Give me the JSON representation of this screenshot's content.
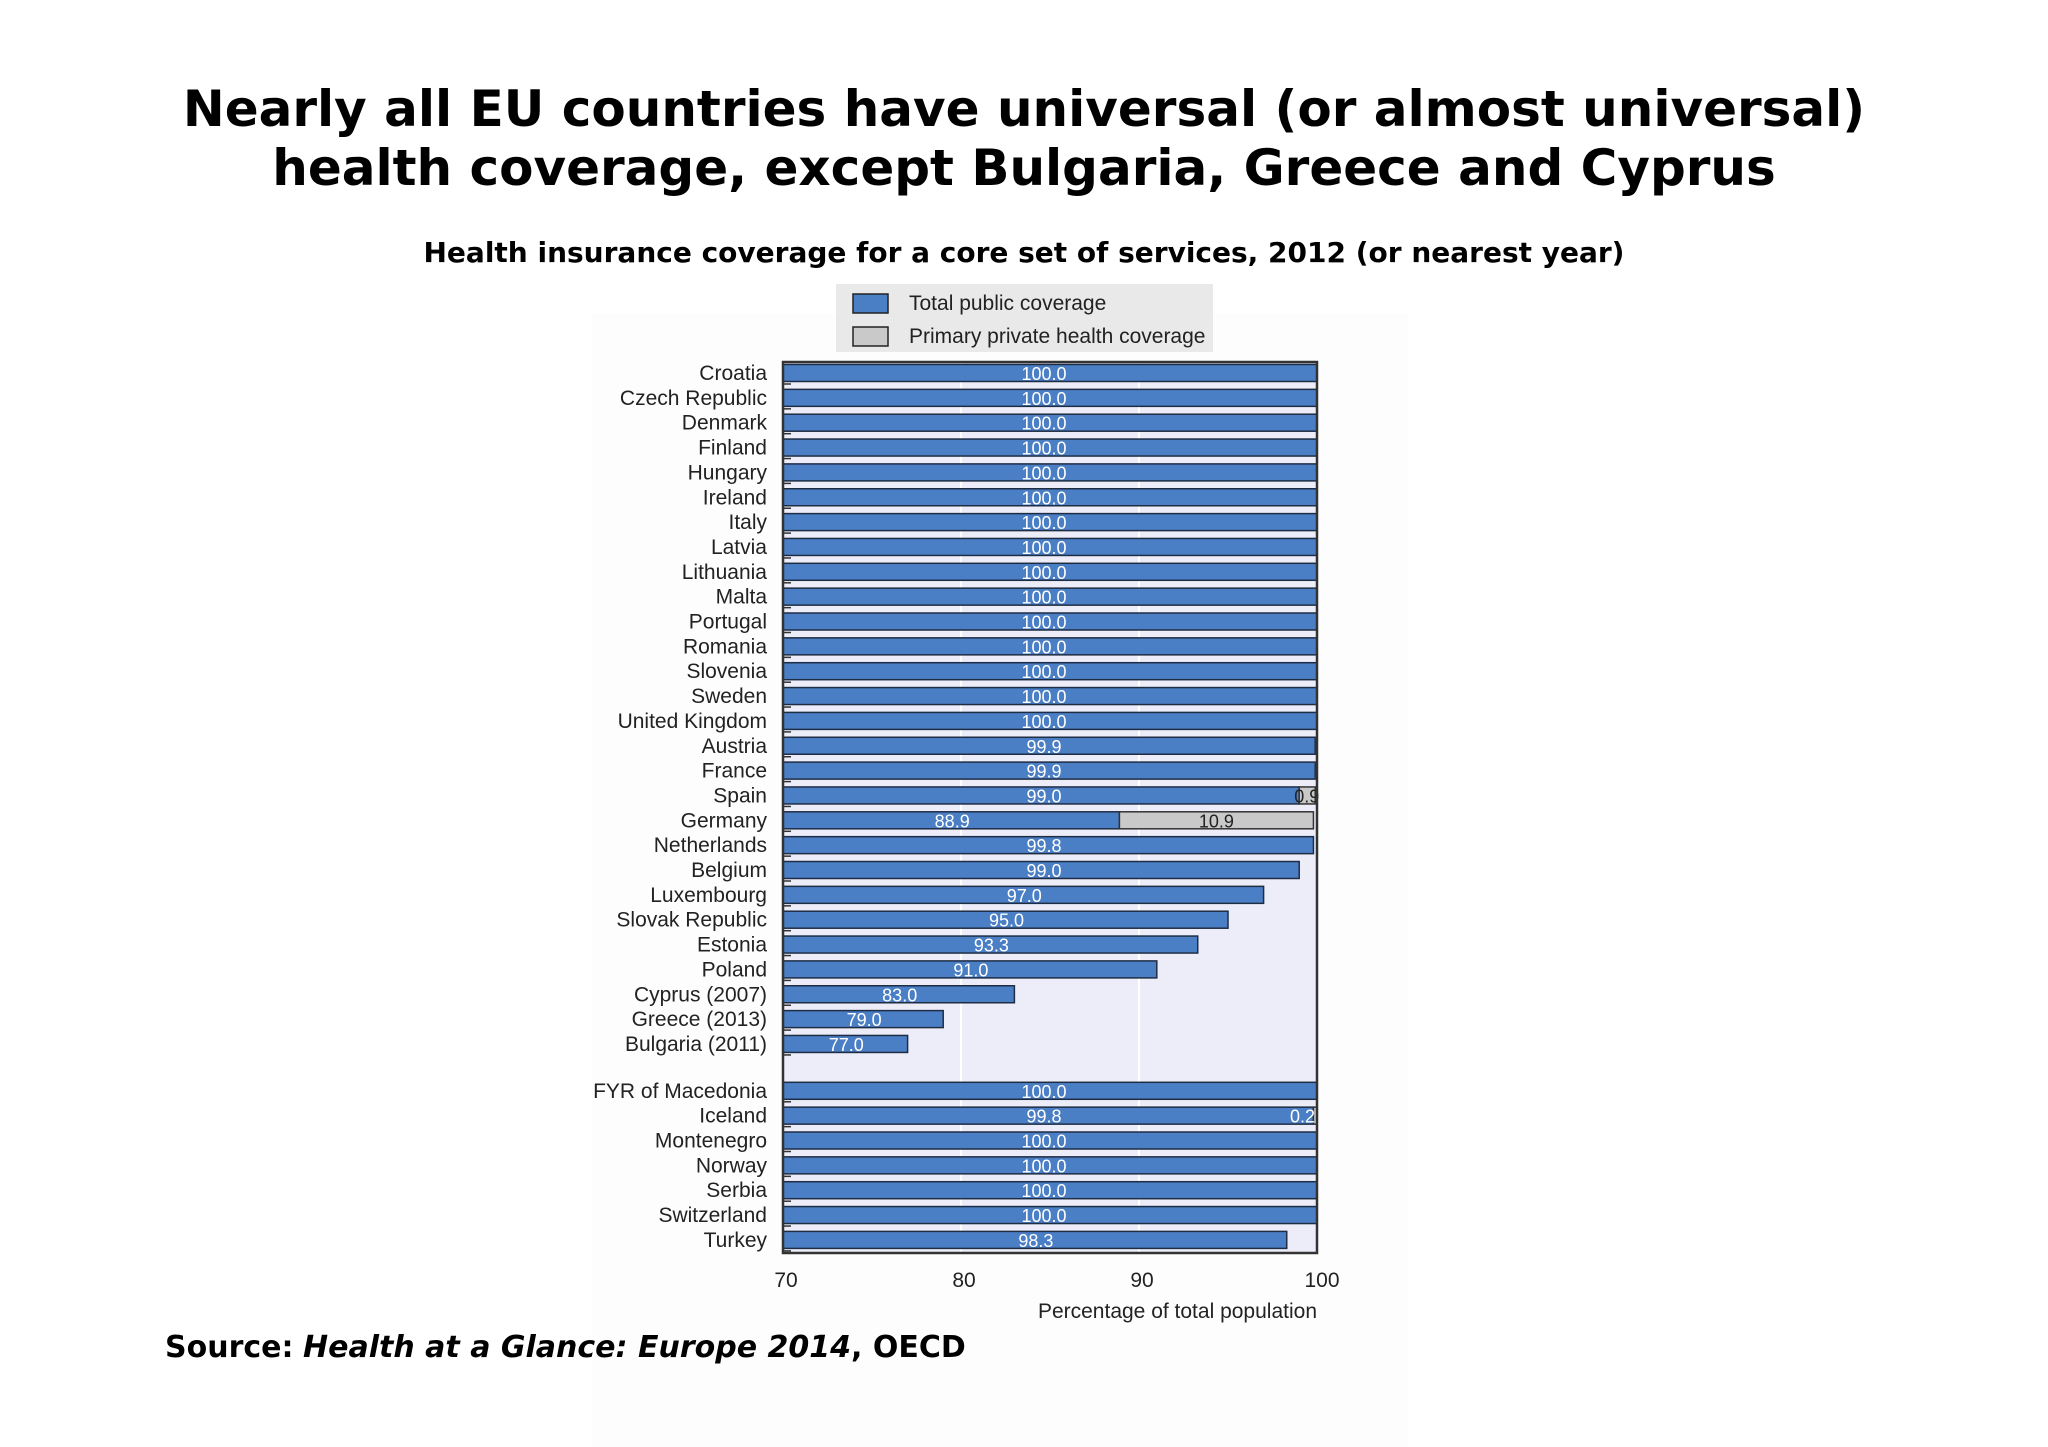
{
  "slide": {
    "title_line1": "Nearly all EU countries have universal (or almost universal)",
    "title_line2": "health coverage, except Bulgaria, Greece and Cyprus",
    "source_label": "Source:",
    "source_title": "Health at a Glance: Europe 2014",
    "source_org": ", OECD"
  },
  "colors": {
    "public": "#4a7ec5",
    "private": "#c9c9c9",
    "plot_bg": "#ecedf8",
    "grid": "#ffffff",
    "axis": "#333333"
  },
  "chart_data": {
    "type": "bar",
    "orientation": "horizontal",
    "stacked": true,
    "title": "Health insurance coverage for a core set of services, 2012 (or nearest year)",
    "xlabel": "Percentage of total population",
    "xlim": [
      70,
      100
    ],
    "xticks": [
      70,
      80,
      90,
      100
    ],
    "legend_position": "top-center",
    "series": [
      {
        "name": "Total public coverage",
        "color": "#4a7ec5"
      },
      {
        "name": "Primary private health coverage",
        "color": "#c9c9c9"
      }
    ],
    "categories": [
      {
        "label": "Croatia",
        "public": 100.0,
        "public_label": "100.0"
      },
      {
        "label": "Czech Republic",
        "public": 100.0,
        "public_label": "100.0"
      },
      {
        "label": "Denmark",
        "public": 100.0,
        "public_label": "100.0"
      },
      {
        "label": "Finland",
        "public": 100.0,
        "public_label": "100.0"
      },
      {
        "label": "Hungary",
        "public": 100.0,
        "public_label": "100.0"
      },
      {
        "label": "Ireland",
        "public": 100.0,
        "public_label": "100.0"
      },
      {
        "label": "Italy",
        "public": 100.0,
        "public_label": "100.0"
      },
      {
        "label": "Latvia",
        "public": 100.0,
        "public_label": "100.0"
      },
      {
        "label": "Lithuania",
        "public": 100.0,
        "public_label": "100.0"
      },
      {
        "label": "Malta",
        "public": 100.0,
        "public_label": "100.0"
      },
      {
        "label": "Portugal",
        "public": 100.0,
        "public_label": "100.0"
      },
      {
        "label": "Romania",
        "public": 100.0,
        "public_label": "100.0"
      },
      {
        "label": "Slovenia",
        "public": 100.0,
        "public_label": "100.0"
      },
      {
        "label": "Sweden",
        "public": 100.0,
        "public_label": "100.0"
      },
      {
        "label": "United Kingdom",
        "public": 100.0,
        "public_label": "100.0"
      },
      {
        "label": "Austria",
        "public": 99.9,
        "public_label": "99.9"
      },
      {
        "label": "France",
        "public": 99.9,
        "public_label": "99.9"
      },
      {
        "label": "Spain",
        "public": 99.0,
        "public_label": "99.0",
        "private": 0.9,
        "private_label": "0.9"
      },
      {
        "label": "Germany",
        "public": 88.9,
        "public_label": "88.9",
        "private": 10.9,
        "private_label": "10.9"
      },
      {
        "label": "Netherlands",
        "public": 99.8,
        "public_label": "99.8"
      },
      {
        "label": "Belgium",
        "public": 99.0,
        "public_label": "99.0"
      },
      {
        "label": "Luxembourg",
        "public": 97.0,
        "public_label": "97.0"
      },
      {
        "label": "Slovak Republic",
        "public": 95.0,
        "public_label": "95.0"
      },
      {
        "label": "Estonia",
        "public": 93.3,
        "public_label": "93.3"
      },
      {
        "label": "Poland",
        "public": 91.0,
        "public_label": "91.0"
      },
      {
        "label": "Cyprus (2007)",
        "public": 83.0,
        "public_label": "83.0"
      },
      {
        "label": "Greece (2013)",
        "public": 79.0,
        "public_label": "79.0"
      },
      {
        "label": "Bulgaria (2011)",
        "public": 77.0,
        "public_label": "77.0"
      },
      {
        "label": "FYR of Macedonia",
        "public": 100.0,
        "public_label": "100.0",
        "group_start": true
      },
      {
        "label": "Iceland",
        "public": 99.8,
        "public_label": "99.8",
        "private": 0.2,
        "private_label": "0.2"
      },
      {
        "label": "Montenegro",
        "public": 100.0,
        "public_label": "100.0"
      },
      {
        "label": "Norway",
        "public": 100.0,
        "public_label": "100.0"
      },
      {
        "label": "Serbia",
        "public": 100.0,
        "public_label": "100.0"
      },
      {
        "label": "Switzerland",
        "public": 100.0,
        "public_label": "100.0"
      },
      {
        "label": "Turkey",
        "public": 98.3,
        "public_label": "98.3"
      }
    ]
  }
}
